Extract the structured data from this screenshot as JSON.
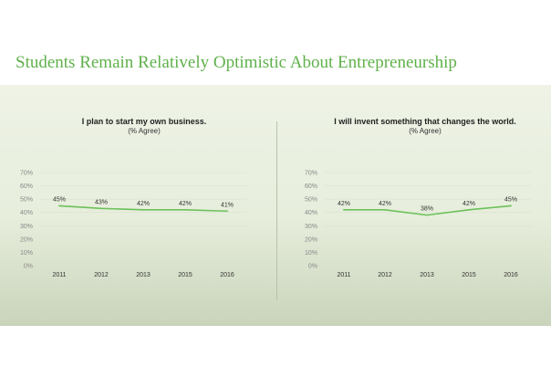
{
  "page": {
    "title": "Students Remain Relatively Optimistic About Entrepreneurship"
  },
  "colors": {
    "accent": "#5fb14a",
    "line": "#6cc15a"
  },
  "chart_data": [
    {
      "type": "line",
      "title": "I plan to start my own business.",
      "subtitle": "(% Agree)",
      "categories": [
        "2011",
        "2012",
        "2013",
        "2015",
        "2016"
      ],
      "series": [
        {
          "values": [
            45,
            43,
            42,
            42,
            41
          ],
          "labels": [
            "45%",
            "43%",
            "42%",
            "42%",
            "41%"
          ]
        }
      ],
      "yticks": [
        "0%",
        "10%",
        "20%",
        "30%",
        "40%",
        "50%",
        "60%",
        "70%"
      ],
      "ylim": [
        0,
        70
      ],
      "grid": true
    },
    {
      "type": "line",
      "title": "I will invent something that changes the world.",
      "subtitle": "(% Agree)",
      "categories": [
        "2011",
        "2012",
        "2013",
        "2015",
        "2016"
      ],
      "series": [
        {
          "values": [
            42,
            42,
            38,
            42,
            45
          ],
          "labels": [
            "42%",
            "42%",
            "38%",
            "42%",
            "45%"
          ]
        }
      ],
      "yticks": [
        "0%",
        "10%",
        "20%",
        "30%",
        "40%",
        "50%",
        "60%",
        "70%"
      ],
      "ylim": [
        0,
        70
      ],
      "grid": true
    }
  ]
}
